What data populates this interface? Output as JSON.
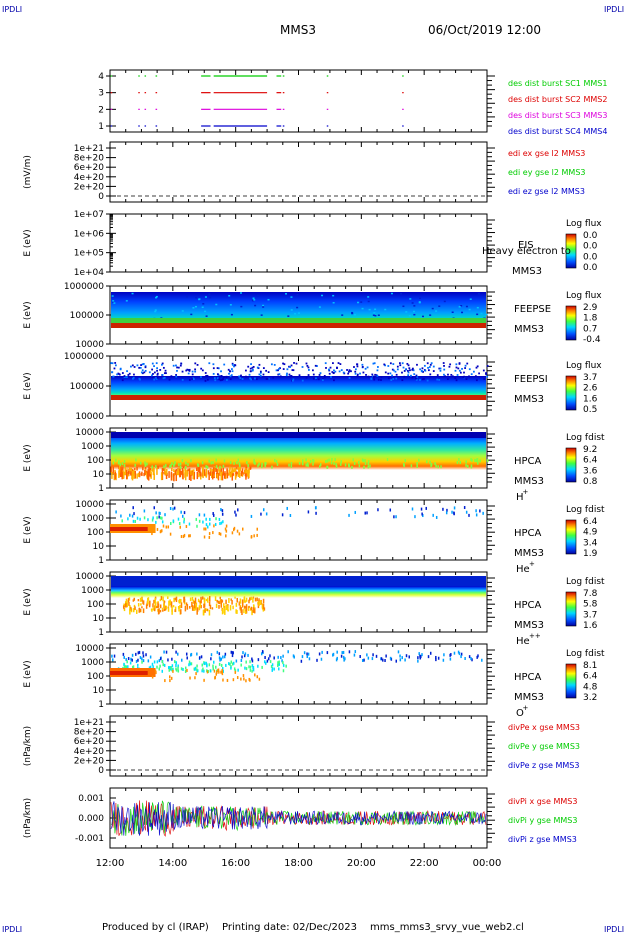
{
  "header": {
    "corner_tl": "IPDLI",
    "corner_tr": "IPDLI",
    "corner_bl": "IPDLI",
    "corner_br": "IPDLI",
    "spacecraft": "MMS3",
    "date": "06/Oct/2019 12:00"
  },
  "footer": {
    "produced": "Produced by cl (IRAP)",
    "printing": "Printing date: 02/Dec/2023",
    "script": "mms_mms3_srvy_vue_web2.cl"
  },
  "colors": {
    "red": "#dd0000",
    "green": "#00cc00",
    "blue": "#0000cc",
    "magenta": "#dd00dd",
    "band_red": "#cc2200"
  },
  "chart_data": {
    "type": "stacked multi-panel time series",
    "x_tick_labels": [
      "12:00",
      "14:00",
      "16:00",
      "18:00",
      "20:00",
      "22:00",
      "00:00"
    ],
    "x_range_hours": [
      12,
      24
    ],
    "panels": [
      {
        "kind": "burst",
        "y_ticks": [
          "4",
          "3",
          "2",
          "1"
        ],
        "series": [
          {
            "name": "des dist burst SC1 MMS1",
            "level": 4,
            "color": "#00cc00"
          },
          {
            "name": "des dist burst SC2 MMS2",
            "level": 3,
            "color": "#dd0000"
          },
          {
            "name": "des dist burst SC3 MMS3",
            "level": 2,
            "color": "#dd00dd"
          },
          {
            "name": "des dist burst SC4 MMS4",
            "level": 1,
            "color": "#0000cc"
          }
        ],
        "intervals_hours": [
          [
            12.02,
            12.06
          ],
          [
            12.9,
            12.93
          ],
          [
            13.1,
            13.12
          ],
          [
            13.45,
            13.5
          ],
          [
            14.9,
            15.2
          ],
          [
            15.3,
            17.0
          ],
          [
            17.3,
            17.45
          ],
          [
            17.5,
            17.55
          ],
          [
            18.9,
            18.93
          ],
          [
            21.3,
            21.33
          ]
        ]
      },
      {
        "kind": "line",
        "ylabel": "(mV/m)",
        "y_ticks": [
          "1e+21",
          "8e+20",
          "6e+20",
          "4e+20",
          "2e+20",
          "0"
        ],
        "series": [
          {
            "name": "edi ex gse l2 MMS3",
            "color": "#dd0000"
          },
          {
            "name": "edi ey gse l2 MMS3",
            "color": "#00cc00"
          },
          {
            "name": "edi ez gse l2 MMS3",
            "color": "#0000cc"
          }
        ]
      },
      {
        "kind": "spectro",
        "name": "EIS",
        "ylabel": "E (eV)",
        "y_ticks": [
          "1e+07",
          "1e+06",
          "1e+05",
          "1e+04"
        ],
        "side": [
          "EIS",
          "MMS3"
        ],
        "note": "Heavy electron to",
        "cbar_title": "Log flux",
        "cbar_ticks": [
          "0.0",
          "0.0",
          "0.0",
          "0.0"
        ]
      },
      {
        "kind": "spectro",
        "name": "FEEPSE",
        "ylabel": "E (eV)",
        "y_ticks": [
          "1000000",
          "100000",
          "10000"
        ],
        "side": [
          "FEEPSE",
          "MMS3"
        ],
        "cbar_title": "Log flux",
        "cbar_ticks": [
          "2.9",
          "1.8",
          "0.7",
          "-0.4"
        ]
      },
      {
        "kind": "spectro",
        "name": "FEEPSI",
        "ylabel": "E (eV)",
        "y_ticks": [
          "1000000",
          "100000",
          "10000"
        ],
        "side": [
          "FEEPSI",
          "MMS3"
        ],
        "cbar_title": "Log flux",
        "cbar_ticks": [
          "3.7",
          "2.6",
          "1.6",
          "0.5"
        ]
      },
      {
        "kind": "spectro",
        "name": "HPCA H+",
        "ylabel": "E (eV)",
        "y_ticks": [
          "10000",
          "1000",
          "100",
          "10",
          "1"
        ],
        "side": [
          "HPCA",
          "MMS3"
        ],
        "species": "H",
        "charge": "+",
        "cbar_title": "Log fdist",
        "cbar_ticks": [
          "9.2",
          "6.4",
          "3.6",
          "0.8"
        ]
      },
      {
        "kind": "spectro",
        "name": "HPCA He+",
        "ylabel": "E (eV)",
        "y_ticks": [
          "10000",
          "1000",
          "100",
          "10",
          "1"
        ],
        "side": [
          "HPCA",
          "MMS3"
        ],
        "species": "He",
        "charge": "+",
        "cbar_title": "Log fdist",
        "cbar_ticks": [
          "6.4",
          "4.9",
          "3.4",
          "1.9"
        ]
      },
      {
        "kind": "spectro",
        "name": "HPCA He++",
        "ylabel": "E (eV)",
        "y_ticks": [
          "10000",
          "1000",
          "100",
          "10",
          "1"
        ],
        "side": [
          "HPCA",
          "MMS3"
        ],
        "species": "He",
        "charge": "++",
        "cbar_title": "Log fdist",
        "cbar_ticks": [
          "7.8",
          "5.8",
          "3.7",
          "1.6"
        ]
      },
      {
        "kind": "spectro",
        "name": "HPCA O+",
        "ylabel": "E (eV)",
        "y_ticks": [
          "10000",
          "1000",
          "100",
          "10",
          "1"
        ],
        "side": [
          "HPCA",
          "MMS3"
        ],
        "species": "O",
        "charge": "+",
        "cbar_title": "Log fdist",
        "cbar_ticks": [
          "8.1",
          "6.4",
          "4.8",
          "3.2"
        ]
      },
      {
        "kind": "line",
        "ylabel": "(nPa/km)",
        "y_ticks": [
          "1e+21",
          "8e+20",
          "6e+20",
          "4e+20",
          "2e+20",
          "0"
        ],
        "series": [
          {
            "name": "divPe x gse MMS3",
            "color": "#dd0000"
          },
          {
            "name": "divPe y gse MMS3",
            "color": "#00cc00"
          },
          {
            "name": "divPe z gse MMS3",
            "color": "#0000cc"
          }
        ]
      },
      {
        "kind": "noise",
        "ylabel": "(nPa/km)",
        "y_ticks": [
          "0.001",
          "0.000",
          "-0.001"
        ],
        "ylim": [
          -0.0015,
          0.0015
        ],
        "series": [
          {
            "name": "divPi x gse MMS3",
            "color": "#dd0000"
          },
          {
            "name": "divPi y gse MMS3",
            "color": "#00cc00"
          },
          {
            "name": "divPi z gse MMS3",
            "color": "#0000cc"
          }
        ]
      }
    ]
  }
}
